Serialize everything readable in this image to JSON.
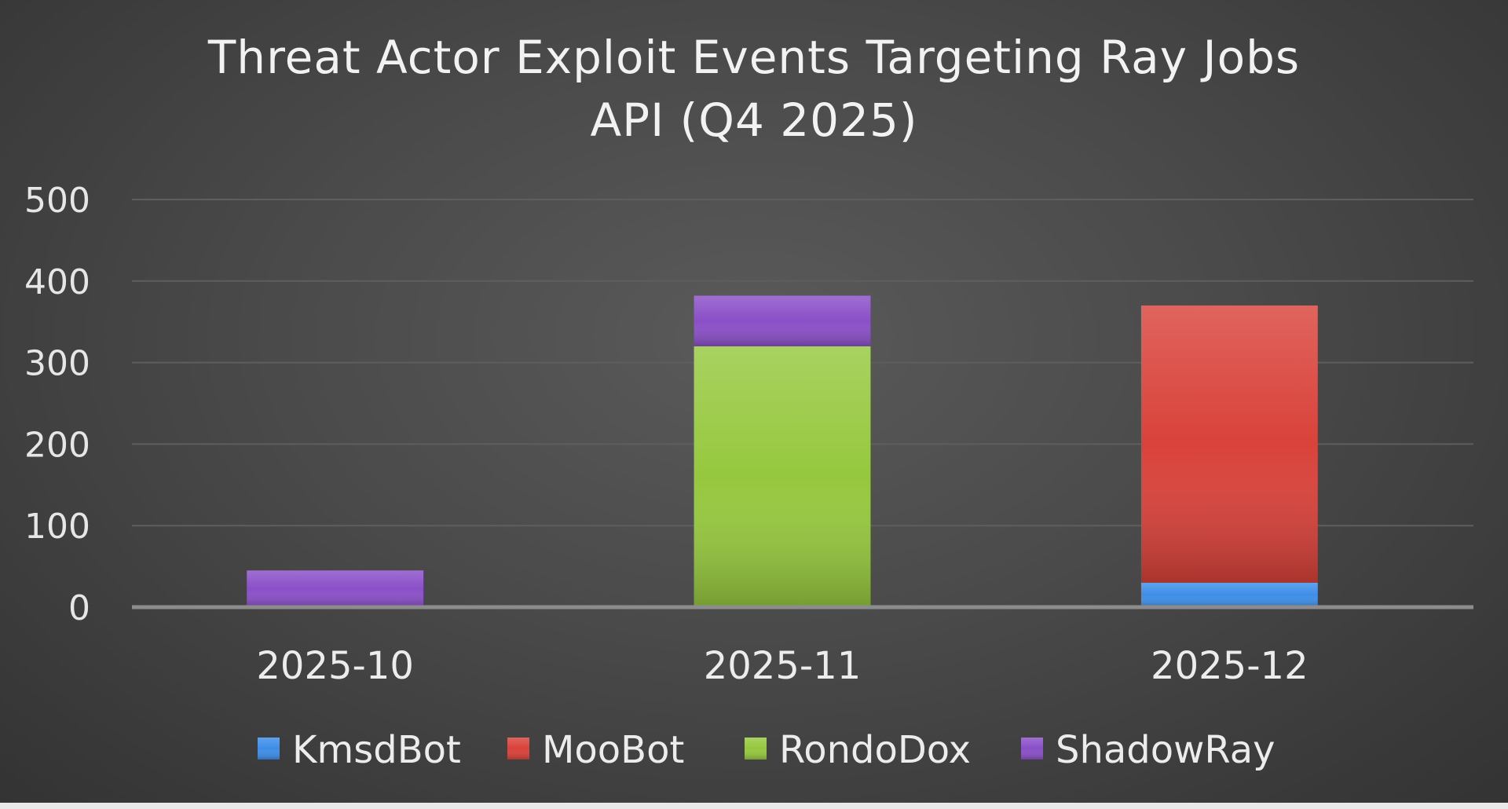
{
  "chart_data": {
    "type": "bar",
    "stacked": true,
    "title_lines": [
      "Threat Actor Exploit Events Targeting Ray Jobs",
      "API (Q4 2025)"
    ],
    "categories": [
      "2025-10",
      "2025-11",
      "2025-12"
    ],
    "series": [
      {
        "name": "KmsdBot",
        "color": "#3d8ee8",
        "values": [
          0,
          0,
          30
        ]
      },
      {
        "name": "MooBot",
        "color": "#d9423a",
        "values": [
          0,
          0,
          340
        ]
      },
      {
        "name": "RondoDox",
        "color": "#96c83e",
        "values": [
          0,
          320,
          0
        ]
      },
      {
        "name": "ShadowRay",
        "color": "#8a4fc8",
        "values": [
          45,
          62,
          0
        ]
      }
    ],
    "ylim": [
      0,
      500
    ],
    "yticks": [
      0,
      100,
      200,
      300,
      400,
      500
    ],
    "grid": true,
    "legend_position": "bottom"
  },
  "colors": {
    "gridline": "#5e5e5e",
    "axis": "#8c8c8c"
  }
}
